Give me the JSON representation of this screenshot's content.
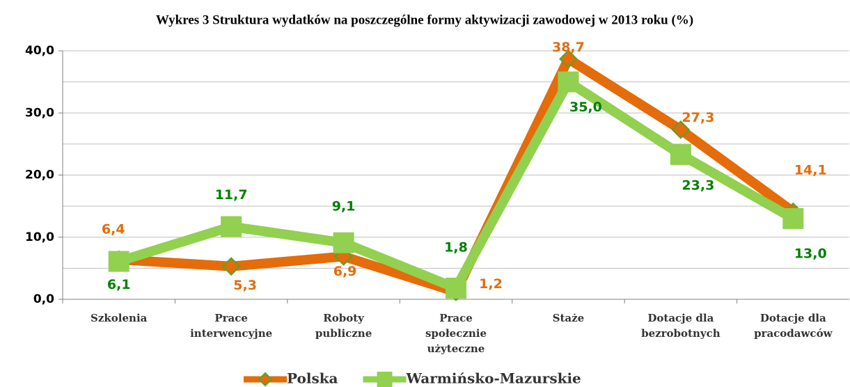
{
  "chart_data": {
    "type": "line",
    "title": "Wykres 3 Struktura wydatków na poszczególne formy aktywizacji zawodowej w 2013 roku (%)",
    "categories": [
      [
        "Szkolenia"
      ],
      [
        "Prace",
        "interwencyjne"
      ],
      [
        "Roboty",
        "publiczne"
      ],
      [
        "Prace",
        "społecznie",
        "użyteczne"
      ],
      [
        "Staże"
      ],
      [
        "Dotacje dla",
        "bezrobotnych"
      ],
      [
        "Dotacje dla",
        "pracodawców"
      ]
    ],
    "series": [
      {
        "name": "Polska",
        "color": "#e46c0a",
        "label_color": "#e46c0a",
        "marker": "diamond",
        "marker_stroke": "#4ea72e",
        "values": [
          6.4,
          5.3,
          6.9,
          1.2,
          38.7,
          27.3,
          14.1
        ],
        "value_labels": [
          "6,4",
          "5,3",
          "6,9",
          "1,2",
          "38,7",
          "27,3",
          "14,1"
        ]
      },
      {
        "name": "Warmińsko-Mazurskie",
        "color": "#92d050",
        "label_color": "#008000",
        "marker": "square",
        "values": [
          6.1,
          11.7,
          9.1,
          1.8,
          35.0,
          23.3,
          13.0
        ],
        "value_labels": [
          "6,1",
          "11,7",
          "9,1",
          "1,8",
          "35,0",
          "23,3",
          "13,0"
        ]
      }
    ],
    "ylim": [
      0,
      40
    ],
    "yticks": [
      {
        "value": 0,
        "label": "0,0"
      },
      {
        "value": 10,
        "label": "10,0"
      },
      {
        "value": 20,
        "label": "20,0"
      },
      {
        "value": 30,
        "label": "30,0"
      },
      {
        "value": 40,
        "label": "40,0"
      }
    ],
    "minor_yticks": [
      5,
      15,
      25,
      35
    ],
    "grid": true,
    "legend": "bottom"
  }
}
